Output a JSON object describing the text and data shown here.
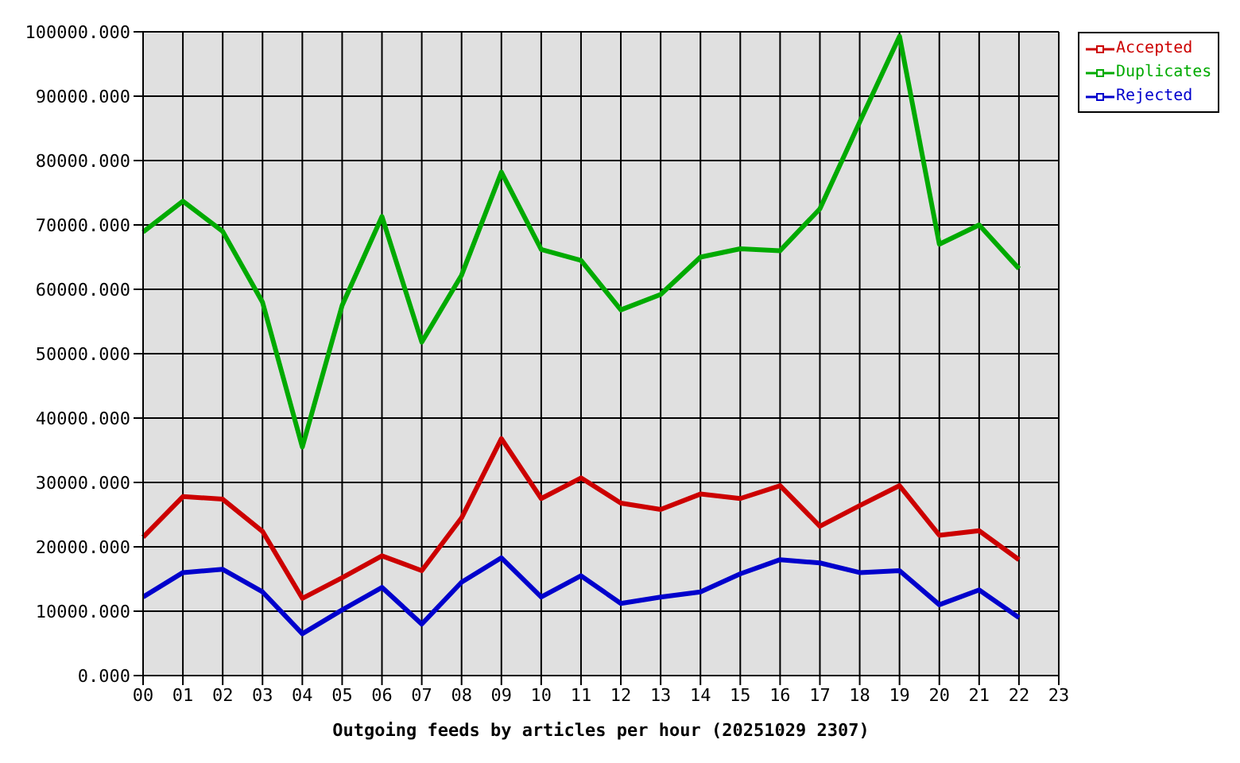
{
  "chart_data": {
    "type": "line",
    "xlabel": "Outgoing feeds by articles per hour (20251029 2307)",
    "categories": [
      "00",
      "01",
      "02",
      "03",
      "04",
      "05",
      "06",
      "07",
      "08",
      "09",
      "10",
      "11",
      "12",
      "13",
      "14",
      "15",
      "16",
      "17",
      "18",
      "19",
      "20",
      "21",
      "22",
      "23"
    ],
    "series": [
      {
        "name": "Accepted",
        "color": "#cc0000",
        "values": [
          21500,
          27800,
          27400,
          22400,
          12000,
          15200,
          18600,
          16300,
          24500,
          36800,
          27500,
          30700,
          26800,
          25800,
          28200,
          27500,
          29500,
          23200,
          26400,
          29500,
          21800,
          22500,
          18000,
          null
        ]
      },
      {
        "name": "Duplicates",
        "color": "#00aa00",
        "values": [
          68900,
          73700,
          69000,
          58000,
          35500,
          57500,
          71300,
          51800,
          62200,
          78200,
          66200,
          64500,
          56800,
          59200,
          65000,
          66300,
          66000,
          72500,
          86000,
          99300,
          67000,
          70000,
          63200,
          null
        ]
      },
      {
        "name": "Rejected",
        "color": "#0000cc",
        "values": [
          12200,
          16000,
          16500,
          13000,
          6500,
          10200,
          13700,
          8000,
          14500,
          18300,
          12200,
          15500,
          11200,
          12200,
          13000,
          15800,
          18000,
          17500,
          16000,
          16300,
          11000,
          13300,
          9000,
          null
        ]
      }
    ],
    "ylim": [
      0,
      100000
    ],
    "yticks": [
      {
        "value": 0,
        "label": "0.000"
      },
      {
        "value": 10000,
        "label": "10000.000"
      },
      {
        "value": 20000,
        "label": "20000.000"
      },
      {
        "value": 30000,
        "label": "30000.000"
      },
      {
        "value": 40000,
        "label": "40000.000"
      },
      {
        "value": 50000,
        "label": "50000.000"
      },
      {
        "value": 60000,
        "label": "60000.000"
      },
      {
        "value": 70000,
        "label": "70000.000"
      },
      {
        "value": 80000,
        "label": "80000.000"
      },
      {
        "value": 90000,
        "label": "90000.000"
      },
      {
        "value": 100000,
        "label": "100000.000"
      }
    ],
    "grid": true,
    "legend": "top right",
    "marker": "none",
    "line_style": "solid"
  }
}
